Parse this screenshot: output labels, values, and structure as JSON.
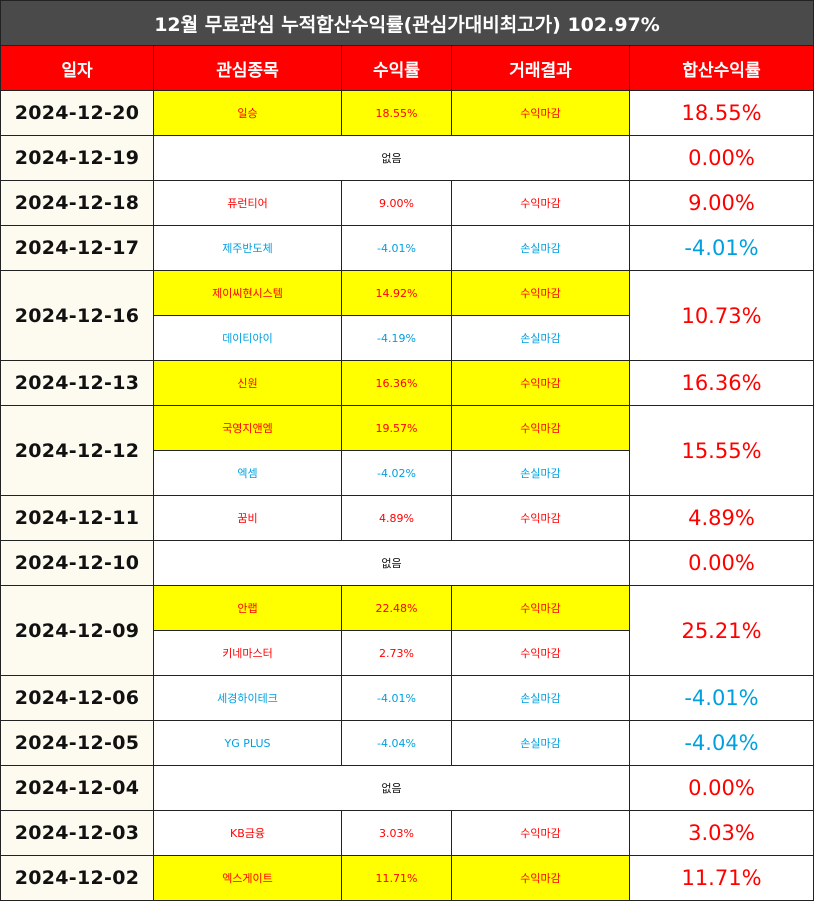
{
  "title": "12월 무료관심 누적합산수익률(관심가대비최고가) 102.97%",
  "headers": [
    "일자",
    "관심종목",
    "수익률",
    "거래결과",
    "합산수익률"
  ],
  "colors": {
    "title_bg": "#4a4a4a",
    "header_bg": "#ff0000",
    "profit": "#ff0000",
    "loss": "#00a0e0",
    "highlight": "#ffff00",
    "date_bg": "#fdfaf0"
  },
  "rows": [
    {
      "date": "2024-12-20",
      "total": "18.55%",
      "total_tone": "pos",
      "entries": [
        {
          "name": "일승",
          "rate": "18.55%",
          "result": "수익마감",
          "tone": "pos",
          "highlight": true
        }
      ]
    },
    {
      "date": "2024-12-19",
      "total": "0.00%",
      "total_tone": "pos",
      "none": "없음",
      "entries": []
    },
    {
      "date": "2024-12-18",
      "total": "9.00%",
      "total_tone": "pos",
      "entries": [
        {
          "name": "퓨런티어",
          "rate": "9.00%",
          "result": "수익마감",
          "tone": "pos",
          "highlight": false
        }
      ]
    },
    {
      "date": "2024-12-17",
      "total": "-4.01%",
      "total_tone": "neg",
      "entries": [
        {
          "name": "제주반도체",
          "rate": "-4.01%",
          "result": "손실마감",
          "tone": "neg",
          "highlight": false
        }
      ]
    },
    {
      "date": "2024-12-16",
      "total": "10.73%",
      "total_tone": "pos",
      "entries": [
        {
          "name": "제이씨현시스템",
          "rate": "14.92%",
          "result": "수익마감",
          "tone": "pos",
          "highlight": true
        },
        {
          "name": "데이티아이",
          "rate": "-4.19%",
          "result": "손실마감",
          "tone": "neg",
          "highlight": false
        }
      ]
    },
    {
      "date": "2024-12-13",
      "total": "16.36%",
      "total_tone": "pos",
      "entries": [
        {
          "name": "신원",
          "rate": "16.36%",
          "result": "수익마감",
          "tone": "pos",
          "highlight": true
        }
      ]
    },
    {
      "date": "2024-12-12",
      "total": "15.55%",
      "total_tone": "pos",
      "entries": [
        {
          "name": "국영지앤엠",
          "rate": "19.57%",
          "result": "수익마감",
          "tone": "pos",
          "highlight": true
        },
        {
          "name": "엑셈",
          "rate": "-4.02%",
          "result": "손실마감",
          "tone": "neg",
          "highlight": false
        }
      ]
    },
    {
      "date": "2024-12-11",
      "total": "4.89%",
      "total_tone": "pos",
      "entries": [
        {
          "name": "꿈비",
          "rate": "4.89%",
          "result": "수익마감",
          "tone": "pos",
          "highlight": false
        }
      ]
    },
    {
      "date": "2024-12-10",
      "total": "0.00%",
      "total_tone": "pos",
      "none": "없음",
      "entries": []
    },
    {
      "date": "2024-12-09",
      "total": "25.21%",
      "total_tone": "pos",
      "entries": [
        {
          "name": "안랩",
          "rate": "22.48%",
          "result": "수익마감",
          "tone": "pos",
          "highlight": true
        },
        {
          "name": "키네마스터",
          "rate": "2.73%",
          "result": "수익마감",
          "tone": "pos",
          "highlight": false
        }
      ]
    },
    {
      "date": "2024-12-06",
      "total": "-4.01%",
      "total_tone": "neg",
      "entries": [
        {
          "name": "세경하이테크",
          "rate": "-4.01%",
          "result": "손실마감",
          "tone": "neg",
          "highlight": false
        }
      ]
    },
    {
      "date": "2024-12-05",
      "total": "-4.04%",
      "total_tone": "neg",
      "entries": [
        {
          "name": "YG PLUS",
          "rate": "-4.04%",
          "result": "손실마감",
          "tone": "neg",
          "highlight": false
        }
      ]
    },
    {
      "date": "2024-12-04",
      "total": "0.00%",
      "total_tone": "pos",
      "none": "없음",
      "entries": []
    },
    {
      "date": "2024-12-03",
      "total": "3.03%",
      "total_tone": "pos",
      "entries": [
        {
          "name": "KB금융",
          "rate": "3.03%",
          "result": "수익마감",
          "tone": "pos",
          "highlight": false
        }
      ]
    },
    {
      "date": "2024-12-02",
      "total": "11.71%",
      "total_tone": "pos",
      "entries": [
        {
          "name": "엑스게이트",
          "rate": "11.71%",
          "result": "수익마감",
          "tone": "pos",
          "highlight": true
        }
      ]
    }
  ]
}
